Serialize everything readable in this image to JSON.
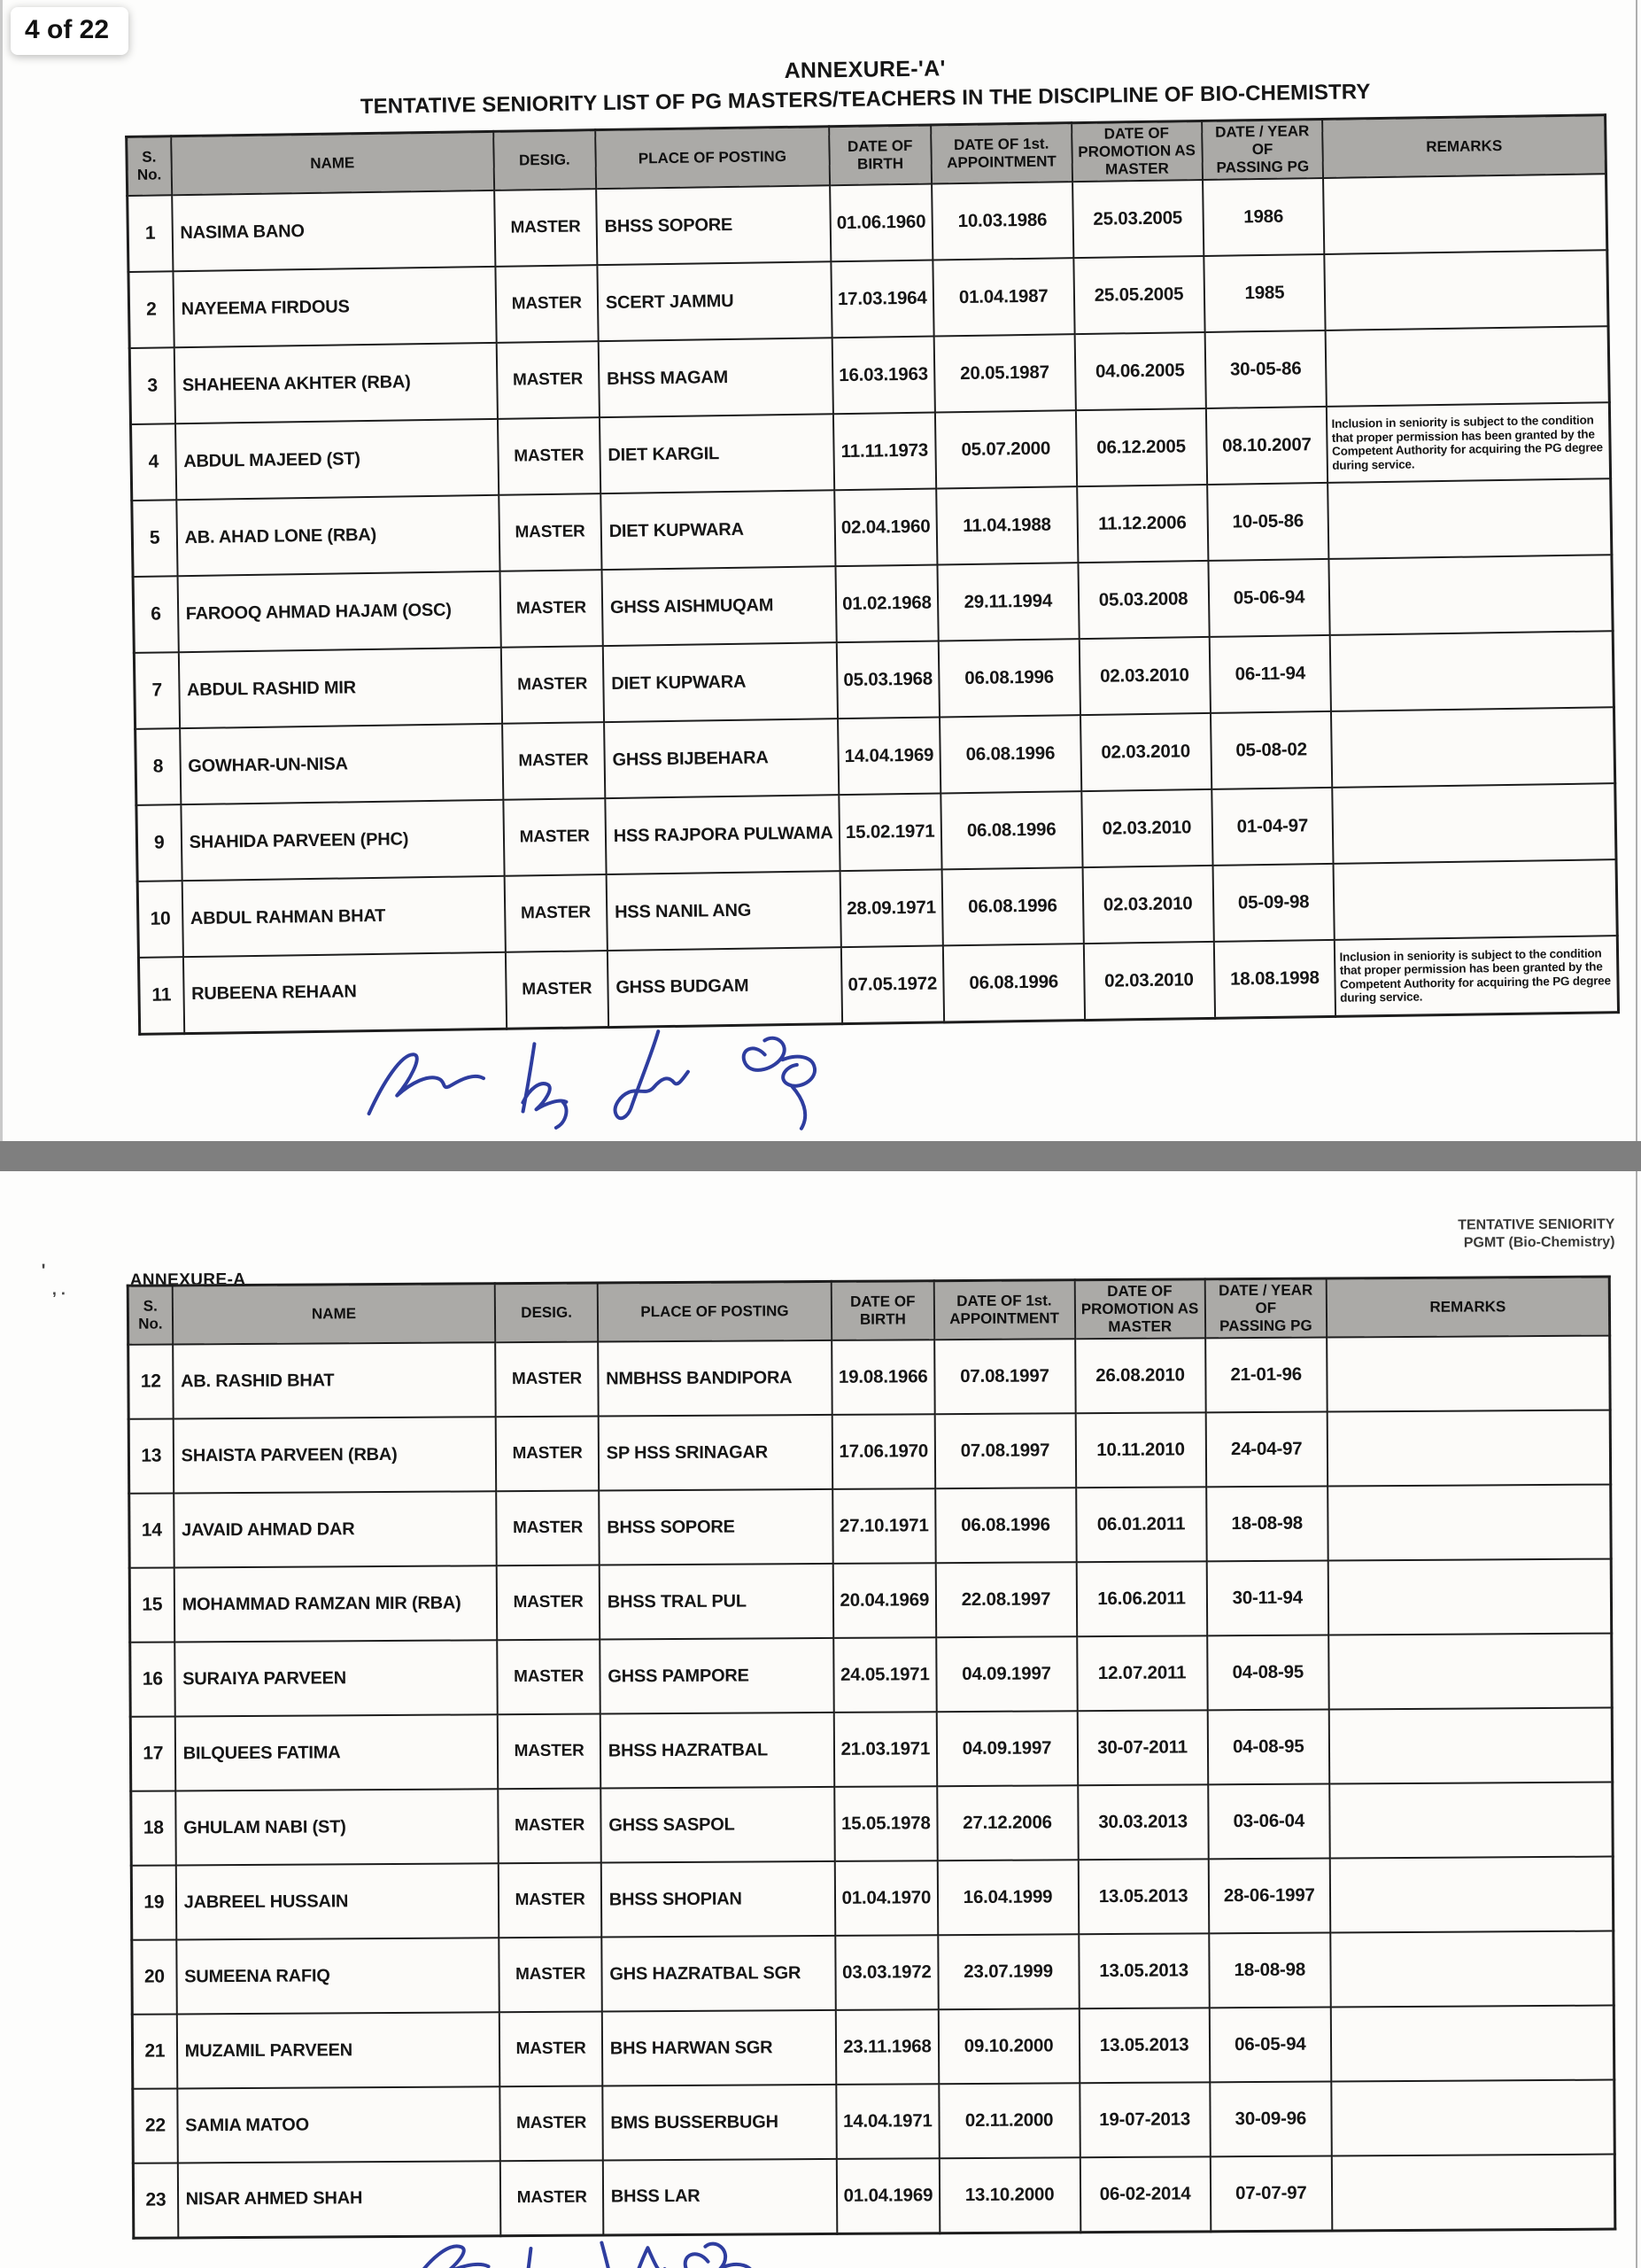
{
  "viewer": {
    "page_indicator": "4 of 22"
  },
  "colors": {
    "signature_blue": "#2e3d9f",
    "header_gray": "#abaaa7",
    "divider_gray": "#7f7f7f"
  },
  "page1": {
    "annexure_title": "ANNEXURE-'A'",
    "main_title_prefix": "TENTATIVE SENIORITY LIST OF PG MASTERS/TEACHERS IN THE DISCIPLINE OF ",
    "main_title_bold": "BIO-CHEMISTRY"
  },
  "page2": {
    "annexure_label": "ANNEXURE-A",
    "corner_line1": "TENTATIVE SENIORITY",
    "corner_line2": "PGMT (Bio-Chemistry)",
    "stray_mark1": "'",
    "stray_mark2": ", .",
    "stray_mark3": "-"
  },
  "table": {
    "headers": [
      "S.\nNo.",
      "NAME",
      "DESIG.",
      "PLACE OF POSTING",
      "DATE OF\nBIRTH",
      "DATE OF 1st.\nAPPOINTMENT",
      "DATE OF\nPROMOTION AS\nMASTER",
      "DATE / YEAR OF\nPASSING PG",
      "REMARKS"
    ],
    "col_widths_pct": [
      3.0,
      21.8,
      6.9,
      15.8,
      6.9,
      9.5,
      8.8,
      8.2,
      19.1
    ]
  },
  "remarks_note": "Inclusion in seniority is subject to the condition that proper permission has been granted by the Competent Authority for acquiring the PG degree during service.",
  "rows_page1": [
    {
      "sno": "1",
      "name": "NASIMA BANO",
      "desig": "MASTER",
      "place": "BHSS SOPORE",
      "dob": "01.06.1960",
      "appt": "10.03.1986",
      "prom": "25.03.2005",
      "pg": "1986",
      "remarks": ""
    },
    {
      "sno": "2",
      "name": "NAYEEMA FIRDOUS",
      "desig": "MASTER",
      "place": "SCERT JAMMU",
      "dob": "17.03.1964",
      "appt": "01.04.1987",
      "prom": "25.05.2005",
      "pg": "1985",
      "remarks": ""
    },
    {
      "sno": "3",
      "name": "SHAHEENA AKHTER (RBA)",
      "desig": "MASTER",
      "place": "BHSS MAGAM",
      "dob": "16.03.1963",
      "appt": "20.05.1987",
      "prom": "04.06.2005",
      "pg": "30-05-86",
      "remarks": ""
    },
    {
      "sno": "4",
      "name": "ABDUL MAJEED (ST)",
      "desig": "MASTER",
      "place": "DIET KARGIL",
      "dob": "11.11.1973",
      "appt": "05.07.2000",
      "prom": "06.12.2005",
      "pg": "08.10.2007",
      "remarks": "Inclusion in seniority is subject to the condition that proper permission has been granted by the Competent Authority for acquiring the PG degree during service."
    },
    {
      "sno": "5",
      "name": "AB. AHAD LONE (RBA)",
      "desig": "MASTER",
      "place": "DIET KUPWARA",
      "dob": "02.04.1960",
      "appt": "11.04.1988",
      "prom": "11.12.2006",
      "pg": "10-05-86",
      "remarks": ""
    },
    {
      "sno": "6",
      "name": "FAROOQ AHMAD HAJAM (OSC)",
      "desig": "MASTER",
      "place": "GHSS AISHMUQAM",
      "dob": "01.02.1968",
      "appt": "29.11.1994",
      "prom": "05.03.2008",
      "pg": "05-06-94",
      "remarks": ""
    },
    {
      "sno": "7",
      "name": "ABDUL RASHID MIR",
      "desig": "MASTER",
      "place": "DIET KUPWARA",
      "dob": "05.03.1968",
      "appt": "06.08.1996",
      "prom": "02.03.2010",
      "pg": "06-11-94",
      "remarks": ""
    },
    {
      "sno": "8",
      "name": "GOWHAR-UN-NISA",
      "desig": "MASTER",
      "place": "GHSS BIJBEHARA",
      "dob": "14.04.1969",
      "appt": "06.08.1996",
      "prom": "02.03.2010",
      "pg": "05-08-02",
      "remarks": ""
    },
    {
      "sno": "9",
      "name": "SHAHIDA PARVEEN (PHC)",
      "desig": "MASTER",
      "place": "HSS RAJPORA PULWAMA",
      "dob": "15.02.1971",
      "appt": "06.08.1996",
      "prom": "02.03.2010",
      "pg": "01-04-97",
      "remarks": ""
    },
    {
      "sno": "10",
      "name": "ABDUL RAHMAN BHAT",
      "desig": "MASTER",
      "place": "HSS NANIL ANG",
      "dob": "28.09.1971",
      "appt": "06.08.1996",
      "prom": "02.03.2010",
      "pg": "05-09-98",
      "remarks": ""
    },
    {
      "sno": "11",
      "name": "RUBEENA REHAAN",
      "desig": "MASTER",
      "place": "GHSS BUDGAM",
      "dob": "07.05.1972",
      "appt": "06.08.1996",
      "prom": "02.03.2010",
      "pg": "18.08.1998",
      "remarks": "Inclusion in seniority is subject to the condition that proper permission has been granted by the Competent Authority for acquiring the PG degree during service."
    }
  ],
  "rows_page2": [
    {
      "sno": "12",
      "name": "AB. RASHID BHAT",
      "desig": "MASTER",
      "place": "NMBHSS BANDIPORA",
      "dob": "19.08.1966",
      "appt": "07.08.1997",
      "prom": "26.08.2010",
      "pg": "21-01-96",
      "remarks": ""
    },
    {
      "sno": "13",
      "name": "SHAISTA PARVEEN (RBA)",
      "desig": "MASTER",
      "place": "SP HSS SRINAGAR",
      "dob": "17.06.1970",
      "appt": "07.08.1997",
      "prom": "10.11.2010",
      "pg": "24-04-97",
      "remarks": ""
    },
    {
      "sno": "14",
      "name": "JAVAID AHMAD DAR",
      "desig": "MASTER",
      "place": "BHSS SOPORE",
      "dob": "27.10.1971",
      "appt": "06.08.1996",
      "prom": "06.01.2011",
      "pg": "18-08-98",
      "remarks": ""
    },
    {
      "sno": "15",
      "name": "MOHAMMAD RAMZAN MIR (RBA)",
      "desig": "MASTER",
      "place": "BHSS TRAL PUL",
      "dob": "20.04.1969",
      "appt": "22.08.1997",
      "prom": "16.06.2011",
      "pg": "30-11-94",
      "remarks": ""
    },
    {
      "sno": "16",
      "name": "SURAIYA PARVEEN",
      "desig": "MASTER",
      "place": "GHSS PAMPORE",
      "dob": "24.05.1971",
      "appt": "04.09.1997",
      "prom": "12.07.2011",
      "pg": "04-08-95",
      "remarks": ""
    },
    {
      "sno": "17",
      "name": "BILQUEES FATIMA",
      "desig": "MASTER",
      "place": "BHSS HAZRATBAL",
      "dob": "21.03.1971",
      "appt": "04.09.1997",
      "prom": "30-07-2011",
      "pg": "04-08-95",
      "remarks": ""
    },
    {
      "sno": "18",
      "name": "GHULAM NABI (ST)",
      "desig": "MASTER",
      "place": "GHSS SASPOL",
      "dob": "15.05.1978",
      "appt": "27.12.2006",
      "prom": "30.03.2013",
      "pg": "03-06-04",
      "remarks": ""
    },
    {
      "sno": "19",
      "name": "JABREEL HUSSAIN",
      "desig": "MASTER",
      "place": "BHSS SHOPIAN",
      "dob": "01.04.1970",
      "appt": "16.04.1999",
      "prom": "13.05.2013",
      "pg": "28-06-1997",
      "remarks": ""
    },
    {
      "sno": "20",
      "name": "SUMEENA RAFIQ",
      "desig": "MASTER",
      "place": "GHS HAZRATBAL SGR",
      "dob": "03.03.1972",
      "appt": "23.07.1999",
      "prom": "13.05.2013",
      "pg": "18-08-98",
      "remarks": ""
    },
    {
      "sno": "21",
      "name": "MUZAMIL PARVEEN",
      "desig": "MASTER",
      "place": "BHS HARWAN SGR",
      "dob": "23.11.1968",
      "appt": "09.10.2000",
      "prom": "13.05.2013",
      "pg": "06-05-94",
      "remarks": ""
    },
    {
      "sno": "22",
      "name": "SAMIA MATOO",
      "desig": "MASTER",
      "place": "BMS BUSSERBUGH",
      "dob": "14.04.1971",
      "appt": "02.11.2000",
      "prom": "19-07-2013",
      "pg": "30-09-96",
      "remarks": ""
    },
    {
      "sno": "23",
      "name": "NISAR AHMED SHAH",
      "desig": "MASTER",
      "place": "BHSS LAR",
      "dob": "01.04.1969",
      "appt": "13.10.2000",
      "prom": "06-02-2014",
      "pg": "07-07-97",
      "remarks": ""
    }
  ]
}
